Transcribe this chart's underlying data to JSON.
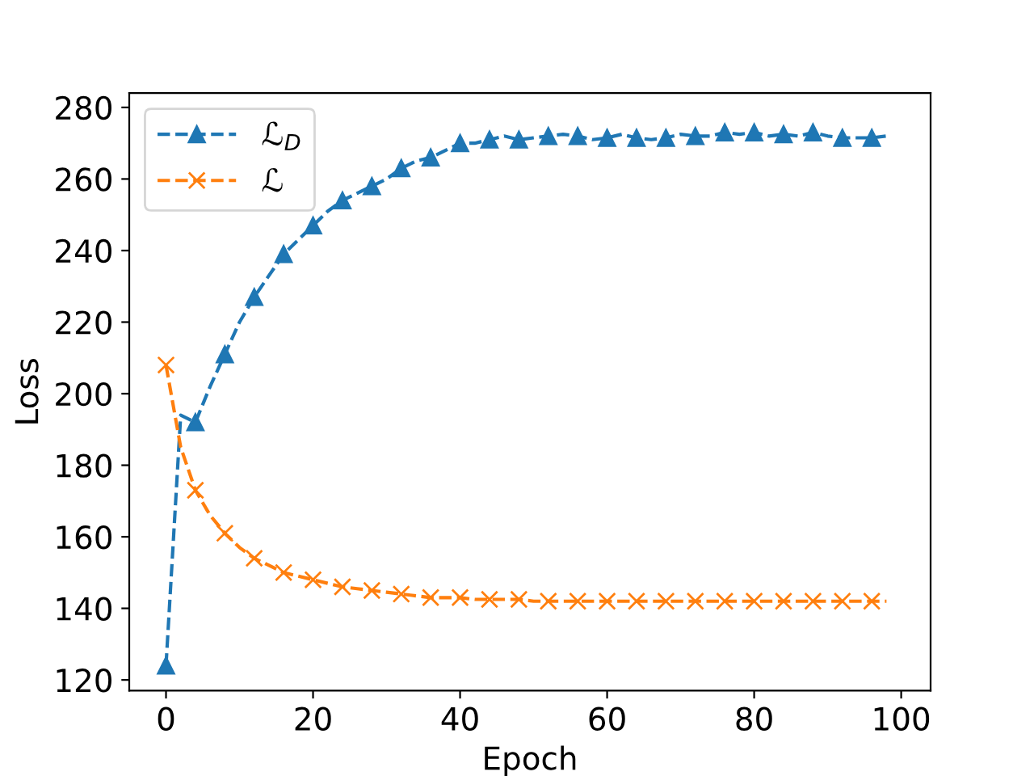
{
  "chart_data": {
    "type": "line",
    "xlabel": "Epoch",
    "ylabel": "Loss",
    "x": [
      0,
      2,
      4,
      6,
      8,
      10,
      12,
      14,
      16,
      18,
      20,
      22,
      24,
      26,
      28,
      30,
      32,
      34,
      36,
      38,
      40,
      42,
      44,
      46,
      48,
      50,
      52,
      54,
      56,
      58,
      60,
      62,
      64,
      66,
      68,
      70,
      72,
      74,
      76,
      78,
      80,
      82,
      84,
      86,
      88,
      90,
      92,
      94,
      96,
      98
    ],
    "series": [
      {
        "name": "ℒ$_{D}$",
        "color": "#1f77b4",
        "marker": "triangle",
        "values": [
          124,
          194,
          192,
          202,
          211,
          220,
          227,
          233,
          239,
          243,
          247,
          251,
          254,
          256,
          258,
          260,
          263,
          265,
          266,
          268,
          270,
          270,
          271,
          272,
          271,
          271.5,
          272,
          272.5,
          272,
          271,
          271.5,
          272.5,
          271.5,
          271,
          271.5,
          272.5,
          272,
          272,
          273,
          272.5,
          273,
          272,
          272.5,
          272,
          273,
          272,
          271.5,
          271.5,
          271.5,
          272
        ]
      },
      {
        "name": "ℒ",
        "color": "#ff7f0e",
        "marker": "cross",
        "values": [
          208,
          185,
          173,
          166,
          161,
          157,
          154,
          152,
          150,
          149,
          148,
          147,
          146,
          145.5,
          145,
          144.5,
          144,
          143.5,
          143,
          143,
          143,
          142.5,
          142.5,
          142.5,
          142.5,
          142,
          142,
          142,
          142,
          142,
          142,
          142,
          142,
          142,
          142,
          142,
          142,
          142,
          142,
          142,
          142,
          142,
          142,
          142,
          142,
          142,
          142,
          142,
          142,
          142
        ]
      }
    ],
    "line_style": "dashed",
    "legend": "top left",
    "grid": false,
    "xlim": [
      -5,
      104
    ],
    "xticks": [
      0,
      20,
      40,
      60,
      80,
      100
    ],
    "ylim": [
      117,
      284
    ],
    "yticks": [
      120,
      140,
      160,
      180,
      200,
      220,
      240,
      260,
      280
    ]
  }
}
